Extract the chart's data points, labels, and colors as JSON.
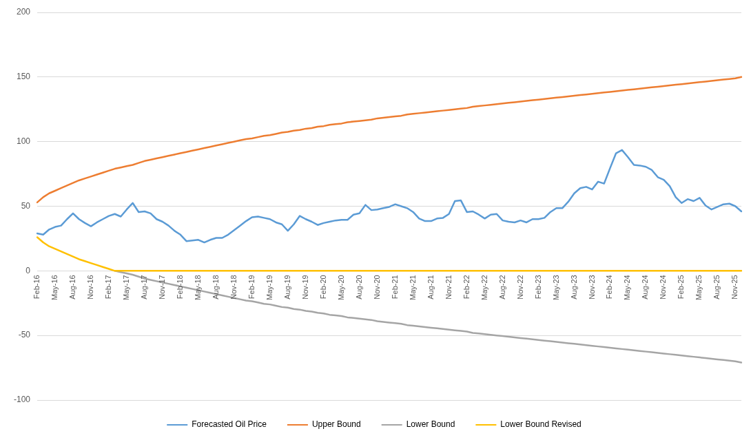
{
  "chart_data": {
    "type": "line",
    "categories": [
      "Feb-16",
      null,
      null,
      "May-16",
      null,
      null,
      "Aug-16",
      null,
      null,
      "Nov-16",
      null,
      null,
      "Feb-17",
      null,
      null,
      "May-17",
      null,
      null,
      "Aug-17",
      null,
      null,
      "Nov-17",
      null,
      null,
      "Feb-18",
      null,
      null,
      "May-18",
      null,
      null,
      "Aug-18",
      null,
      null,
      "Nov-18",
      null,
      null,
      "Feb-19",
      null,
      null,
      "May-19",
      null,
      null,
      "Aug-19",
      null,
      null,
      "Nov-19",
      null,
      null,
      "Feb-20",
      null,
      null,
      "May-20",
      null,
      null,
      "Aug-20",
      null,
      null,
      "Nov-20",
      null,
      null,
      "Feb-21",
      null,
      null,
      "May-21",
      null,
      null,
      "Aug-21",
      null,
      null,
      "Nov-21",
      null,
      null,
      "Feb-22",
      null,
      null,
      "May-22",
      null,
      null,
      "Aug-22",
      null,
      null,
      "Nov-22",
      null,
      null,
      "Feb-23",
      null,
      null,
      "May-23",
      null,
      null,
      "Aug-23",
      null,
      null,
      "Nov-23",
      null,
      null,
      "Feb-24",
      null,
      null,
      "May-24",
      null,
      null,
      "Aug-24",
      null,
      null,
      "Nov-24",
      null,
      null,
      "Feb-25",
      null,
      null,
      "May-25",
      null,
      null,
      "Aug-25",
      null,
      null,
      "Nov-25",
      null
    ],
    "series": [
      {
        "name": "Forecasted Oil Price",
        "color": "#5b9bd5",
        "values": [
          29,
          28,
          32,
          34,
          35,
          40,
          44.5,
          40,
          37,
          34.5,
          37.5,
          40,
          42.5,
          44,
          42,
          47.5,
          52.5,
          45.5,
          46,
          44.5,
          40,
          38,
          35,
          31,
          28,
          23,
          23.5,
          24,
          22,
          24,
          25.5,
          25.5,
          28,
          31.5,
          35,
          38.5,
          41.5,
          42,
          41,
          40,
          37.5,
          36,
          31,
          36,
          42.5,
          40,
          38,
          35.5,
          37,
          38,
          39,
          39.5,
          39.5,
          43.5,
          44.5,
          51,
          47,
          47.5,
          48.5,
          49.5,
          51.5,
          50,
          48.5,
          45.5,
          40.5,
          38.5,
          38.5,
          40.5,
          41,
          44,
          54,
          54.5,
          45.5,
          46,
          43.5,
          40.5,
          43.5,
          44,
          39,
          38,
          37.5,
          39,
          37.5,
          40,
          40,
          41,
          45.5,
          48.5,
          48.5,
          53.5,
          60,
          64,
          65,
          63,
          69,
          67.5,
          79.5,
          91,
          93.5,
          88,
          82,
          81.5,
          80.5,
          78,
          72.5,
          70.5,
          65.5,
          57,
          52.5,
          55.5,
          54,
          56.5,
          50.5,
          47.5,
          49.5,
          51.5,
          52,
          50,
          46
        ]
      },
      {
        "name": "Upper Bound",
        "color": "#ed7d31",
        "values": [
          53,
          57,
          60,
          62,
          64,
          66,
          68,
          70,
          71.5,
          73,
          74.5,
          76,
          77.5,
          79,
          80,
          81,
          82,
          83.5,
          85,
          86,
          87,
          88,
          89,
          90,
          91,
          92,
          93,
          94,
          95,
          96,
          97,
          98,
          99,
          100,
          101,
          102,
          102.5,
          103.5,
          104.5,
          105,
          106,
          107,
          107.5,
          108.5,
          109,
          110,
          110.5,
          111.5,
          112,
          113,
          113.5,
          114,
          115,
          115.5,
          116,
          116.5,
          117,
          118,
          118.5,
          119,
          119.5,
          120,
          121,
          121.5,
          122,
          122.5,
          123,
          123.5,
          124,
          124.5,
          125,
          125.5,
          126,
          127,
          127.5,
          128,
          128.5,
          129,
          129.5,
          130,
          130.5,
          131,
          131.5,
          132,
          132.5,
          133,
          133.5,
          134,
          134.5,
          135,
          135.5,
          136,
          136.5,
          137,
          137.5,
          138,
          138.5,
          139,
          139.5,
          140,
          140.5,
          141,
          141.5,
          142,
          142.5,
          143,
          143.5,
          144,
          144.5,
          145,
          145.5,
          146,
          146.5,
          147,
          147.5,
          148,
          148.5,
          149,
          150
        ]
      },
      {
        "name": "Lower Bound",
        "color": "#a5a5a5",
        "values": [
          null,
          null,
          null,
          null,
          null,
          null,
          null,
          null,
          null,
          null,
          null,
          null,
          null,
          0,
          -1,
          -2,
          -3,
          -4.5,
          -6,
          -7,
          -8,
          -9,
          -10,
          -11,
          -12,
          -13,
          -14,
          -15,
          -16,
          -17,
          -18,
          -19,
          -20,
          -21,
          -22,
          -23,
          -23.5,
          -24.5,
          -25.5,
          -26,
          -27,
          -28,
          -28.5,
          -29.5,
          -30,
          -31,
          -31.5,
          -32.5,
          -33,
          -34,
          -34.5,
          -35,
          -36,
          -36.5,
          -37,
          -37.5,
          -38,
          -39,
          -39.5,
          -40,
          -40.5,
          -41,
          -42,
          -42.5,
          -43,
          -43.5,
          -44,
          -44.5,
          -45,
          -45.5,
          -46,
          -46.5,
          -47,
          -48,
          -48.5,
          -49,
          -49.5,
          -50,
          -50.5,
          -51,
          -51.5,
          -52,
          -52.5,
          -53,
          -53.5,
          -54,
          -54.5,
          -55,
          -55.5,
          -56,
          -56.5,
          -57,
          -57.5,
          -58,
          -58.5,
          -59,
          -59.5,
          -60,
          -60.5,
          -61,
          -61.5,
          -62,
          -62.5,
          -63,
          -63.5,
          -64,
          -64.5,
          -65,
          -65.5,
          -66,
          -66.5,
          -67,
          -67.5,
          -68,
          -68.5,
          -69,
          -69.5,
          -70,
          -71
        ]
      },
      {
        "name": "Lower Bound Revised",
        "color": "#ffc000",
        "values": [
          26,
          22,
          19,
          17,
          15,
          13,
          11,
          9,
          7.5,
          6,
          4.5,
          3,
          1.5,
          0,
          0,
          0,
          0,
          0,
          0,
          0,
          0,
          0,
          0,
          0,
          0,
          0,
          0,
          0,
          0,
          0,
          0,
          0,
          0,
          0,
          0,
          0,
          0,
          0,
          0,
          0,
          0,
          0,
          0,
          0,
          0,
          0,
          0,
          0,
          0,
          0,
          0,
          0,
          0,
          0,
          0,
          0,
          0,
          0,
          0,
          0,
          0,
          0,
          0,
          0,
          0,
          0,
          0,
          0,
          0,
          0,
          0,
          0,
          0,
          0,
          0,
          0,
          0,
          0,
          0,
          0,
          0,
          0,
          0,
          0,
          0,
          0,
          0,
          0,
          0,
          0,
          0,
          0,
          0,
          0,
          0,
          0,
          0,
          0,
          0,
          0,
          0,
          0,
          0,
          0,
          0,
          0,
          0,
          0,
          0,
          0,
          0,
          0,
          0,
          0,
          0,
          0,
          0,
          0,
          0
        ]
      }
    ],
    "ylim": [
      -100,
      200
    ],
    "yticks": [
      -100,
      -50,
      0,
      50,
      100,
      150,
      200
    ],
    "grid": "y",
    "legend": "bottom",
    "marker": "none",
    "line_style": "solid"
  }
}
